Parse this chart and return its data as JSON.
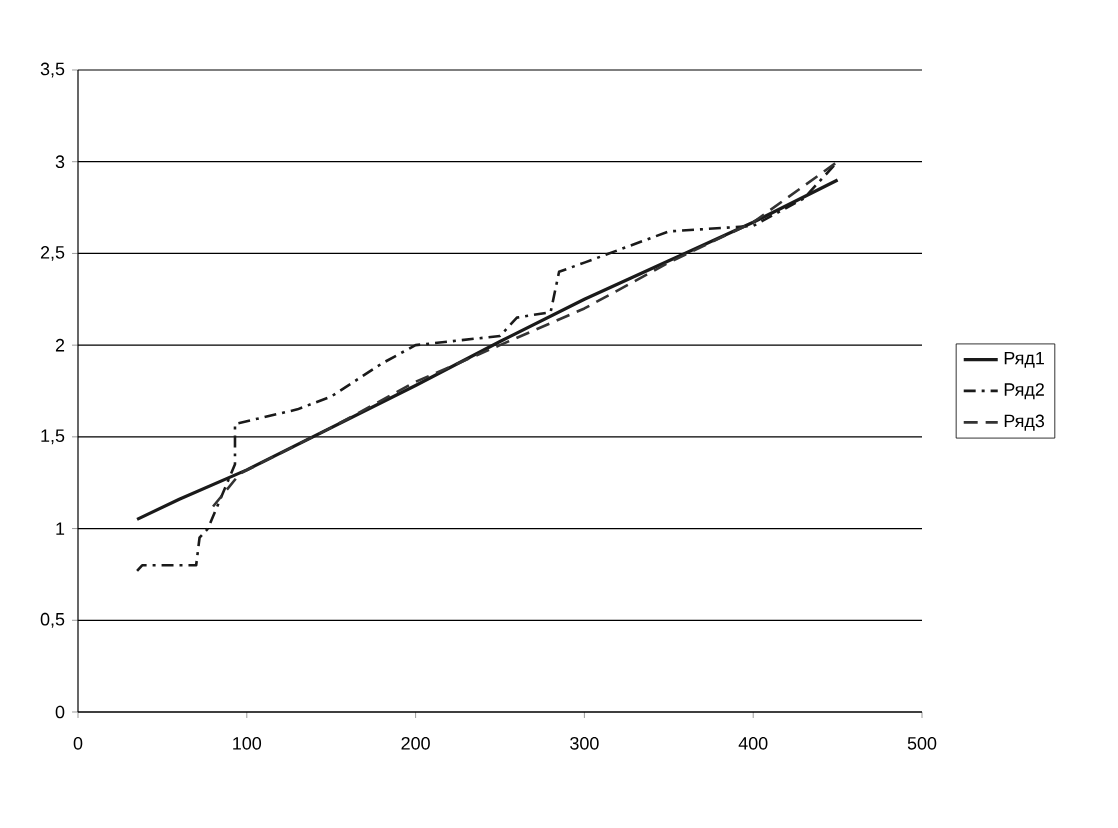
{
  "chart_data": {
    "type": "line",
    "xlim": [
      0,
      500
    ],
    "xticks": [
      0,
      100,
      200,
      300,
      400,
      500
    ],
    "ylim": [
      0,
      3.5
    ],
    "yticks": [
      0,
      {
        "value": 0.5,
        "label": "0,5"
      },
      1,
      {
        "value": 1.5,
        "label": "1,5"
      },
      2,
      {
        "value": 2.5,
        "label": "2,5"
      },
      3,
      {
        "value": 3.5,
        "label": "3,5"
      }
    ],
    "grid": "y",
    "legend": "right",
    "marker": "none",
    "series": [
      {
        "name": "Ряд1",
        "color": "#1a1a1a",
        "line_style": "solid",
        "x": [
          35,
          60,
          100,
          150,
          200,
          250,
          300,
          350,
          400,
          450
        ],
        "values": [
          1.05,
          1.16,
          1.32,
          1.55,
          1.78,
          2.02,
          2.25,
          2.46,
          2.67,
          2.9
        ]
      },
      {
        "name": "Ряд2",
        "color": "#1a1a1a",
        "line_style": "dashdot",
        "x": [
          35,
          38,
          70,
          72,
          77,
          93,
          93,
          130,
          150,
          180,
          200,
          250,
          260,
          280,
          285,
          300,
          350,
          400,
          430,
          450
        ],
        "values": [
          0.77,
          0.8,
          0.8,
          0.95,
          1.0,
          1.35,
          1.57,
          1.65,
          1.72,
          1.9,
          2.0,
          2.05,
          2.15,
          2.18,
          2.4,
          2.45,
          2.62,
          2.65,
          2.8,
          3.0
        ]
      },
      {
        "name": "Ряд3",
        "color": "#333333",
        "line_style": "dashed",
        "x": [
          80,
          96,
          150,
          200,
          250,
          300,
          350,
          400,
          450
        ],
        "values": [
          1.12,
          1.3,
          1.55,
          1.8,
          2.0,
          2.2,
          2.45,
          2.67,
          3.0
        ]
      }
    ]
  }
}
